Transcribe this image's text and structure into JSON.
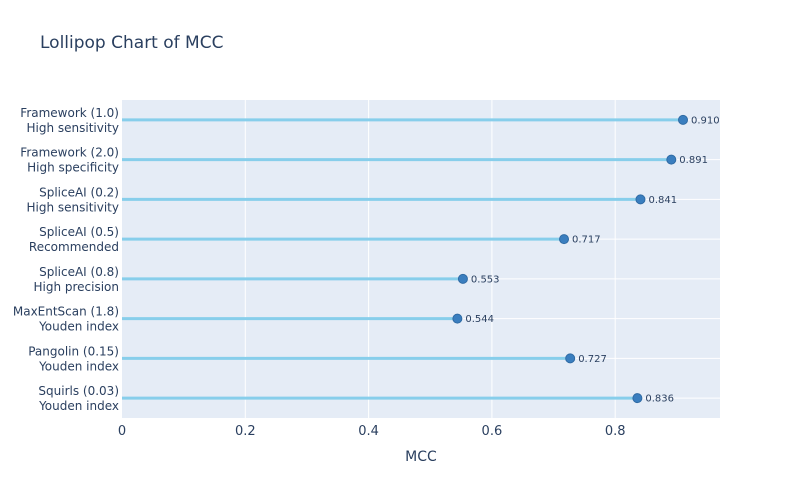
{
  "chart_data": {
    "type": "lollipop",
    "title": "Lollipop Chart of MCC",
    "xlabel": "MCC",
    "xlim": [
      0,
      0.97
    ],
    "xticks": [
      0,
      0.2,
      0.4,
      0.6,
      0.8
    ],
    "xtick_labels": [
      "0",
      "0.2",
      "0.4",
      "0.6",
      "0.8"
    ],
    "grid": true,
    "stem_color": "#87ceeb",
    "marker_color": "#3a7ebf",
    "categories": [
      {
        "line1": "Framework (1.0)",
        "line2": "High sensitivity",
        "value": 0.91,
        "label": "0.910"
      },
      {
        "line1": "Framework (2.0)",
        "line2": "High specificity",
        "value": 0.891,
        "label": "0.891"
      },
      {
        "line1": "SpliceAI (0.2)",
        "line2": "High sensitivity",
        "value": 0.841,
        "label": "0.841"
      },
      {
        "line1": "SpliceAI (0.5)",
        "line2": "Recommended",
        "value": 0.717,
        "label": "0.717"
      },
      {
        "line1": "SpliceAI (0.8)",
        "line2": "High precision",
        "value": 0.553,
        "label": "0.553"
      },
      {
        "line1": "MaxEntScan (1.8)",
        "line2": "Youden index",
        "value": 0.544,
        "label": "0.544"
      },
      {
        "line1": "Pangolin (0.15)",
        "line2": "Youden index",
        "value": 0.727,
        "label": "0.727"
      },
      {
        "line1": "Squirls (0.03)",
        "line2": "Youden index",
        "value": 0.836,
        "label": "0.836"
      }
    ]
  }
}
